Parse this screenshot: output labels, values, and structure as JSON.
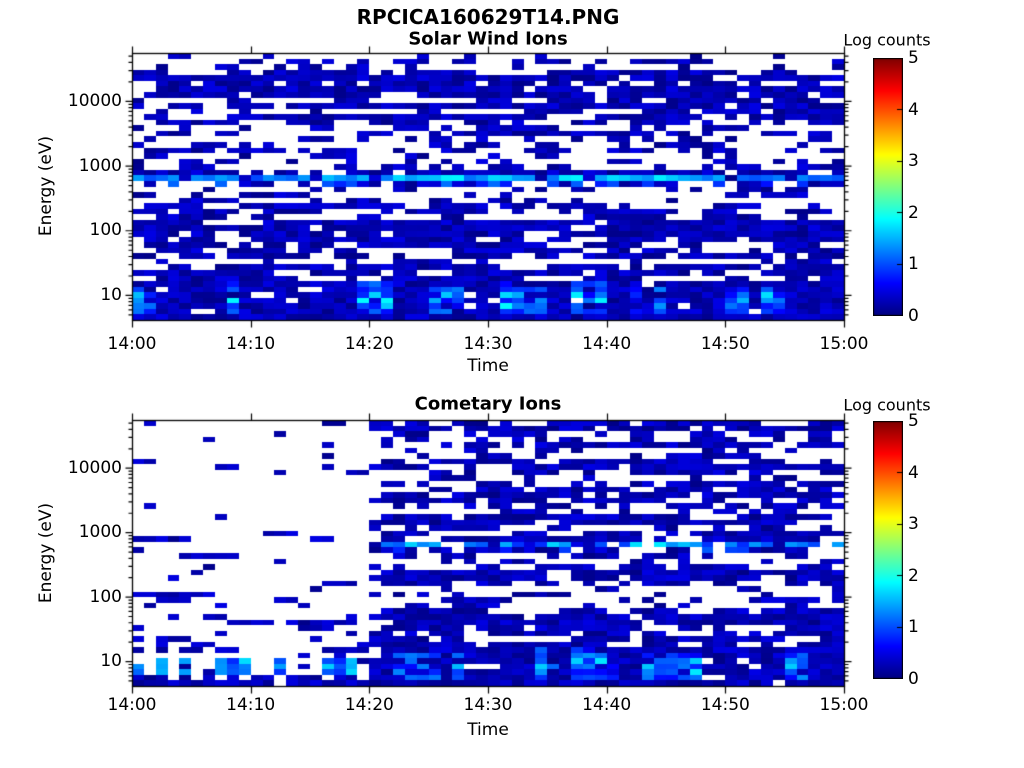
{
  "figure": {
    "title": "RPCICA160629T14.PNG",
    "background_color": "#ffffff",
    "text_color": "#000000"
  },
  "colorbar": {
    "label": "Log counts",
    "tick_labels": [
      "0",
      "1",
      "2",
      "3",
      "4",
      "5"
    ],
    "tick_values": [
      0,
      1,
      2,
      3,
      4,
      5
    ],
    "min": 0,
    "max": 5,
    "colormap": "jet",
    "min_color": "#000080",
    "max_color": "#800000"
  },
  "chart_data": {
    "type": "heatmap",
    "subtype": "energy-time spectrogram",
    "value_label": "Log counts",
    "value_range": [
      0,
      5
    ],
    "colormap": "jet",
    "panels": [
      {
        "title": "Solar Wind Ions",
        "xlabel": "Time",
        "ylabel": "Energy (eV)",
        "x_tick_labels": [
          "14:00",
          "14:10",
          "14:20",
          "14:30",
          "14:40",
          "14:50",
          "15:00"
        ],
        "x_tick_minutes": [
          0,
          10,
          20,
          30,
          40,
          50,
          60
        ],
        "x_span_minutes": 60,
        "y_scale": "log",
        "y_tick_labels": [
          "10",
          "100",
          "1000",
          "10000"
        ],
        "y_tick_values": [
          10,
          100,
          1000,
          10000
        ],
        "ylim": [
          4.1,
          55000
        ],
        "colorbar_label": "Log counts",
        "colorbar_tick_labels": [
          "0",
          "1",
          "2",
          "3",
          "4",
          "5"
        ],
        "description": "Dense random noise of low log-counts (~0-0.5, dark blue) from 10 eV to 40000 eV over the whole hour; a persistent enhanced band near 700-800 eV reaching log counts ~2 (cyan); a dense low-energy population below ~30 eV with bright vertical streaks (log counts 1-2), stronger after 14:20; bottom row nearly solid.",
        "generation": {
          "seed": 20160629,
          "rows": 48,
          "cols": 60,
          "bg_density": 0.47,
          "bg_val_min": 0.04,
          "bg_val_max": 0.5,
          "row_density_jitter": 0.45,
          "band": {
            "row": 22,
            "energy_ev": 750,
            "fill_prob": 0.86,
            "base": 0.85,
            "jitter": 0.55,
            "boost": 0.7,
            "max": 2.05,
            "start_col": 0
          },
          "streak_prob_early": 0.14,
          "streak_prob": 0.32,
          "streak_val_min": 0.7,
          "streak_val_max": 1.95
        }
      },
      {
        "title": "Cometary Ions",
        "xlabel": "Time",
        "ylabel": "Energy (eV)",
        "x_tick_labels": [
          "14:00",
          "14:10",
          "14:20",
          "14:30",
          "14:40",
          "14:50",
          "15:00"
        ],
        "x_tick_minutes": [
          0,
          10,
          20,
          30,
          40,
          50,
          60
        ],
        "x_span_minutes": 60,
        "y_scale": "log",
        "y_tick_labels": [
          "10",
          "100",
          "1000",
          "10000"
        ],
        "y_tick_values": [
          10,
          100,
          1000,
          10000
        ],
        "ylim": [
          4.1,
          55000
        ],
        "colorbar_label": "Log counts",
        "colorbar_tick_labels": [
          "0",
          "1",
          "2",
          "3",
          "4",
          "5"
        ],
        "description": "Before 14:20 counts above ~30 eV are almost absent (only sparse isolated pixels, density increasing toward lower energy); low-energy population below ~30 eV present throughout with bright blue streak blobs; after 14:20 dense noise identical in character to the solar-wind panel with an enhanced ~700-800 eV band (log counts up to ~1.9).",
        "generation": {
          "seed": 66629,
          "rows": 48,
          "cols": 60,
          "bg_density": 0.47,
          "bg_val_min": 0.04,
          "bg_val_max": 0.5,
          "row_density_jitter": 0.45,
          "sparse_until_col": 20,
          "sparse_hi_density": 0.035,
          "sparse_mid_density": 0.06,
          "sparse_blob_prob": 0.55,
          "sparse_core_val_min": 0.8,
          "sparse_core_val_max": 1.8,
          "band": {
            "row": 22,
            "energy_ev": 750,
            "fill_prob": 0.58,
            "base": 0.75,
            "jitter": 0.6,
            "boost": 0.55,
            "max": 1.9,
            "start_col": 20
          },
          "streak_prob_early": 0.3,
          "streak_prob": 0.3,
          "streak_val_min": 0.7,
          "streak_val_max": 1.9
        }
      }
    ]
  }
}
